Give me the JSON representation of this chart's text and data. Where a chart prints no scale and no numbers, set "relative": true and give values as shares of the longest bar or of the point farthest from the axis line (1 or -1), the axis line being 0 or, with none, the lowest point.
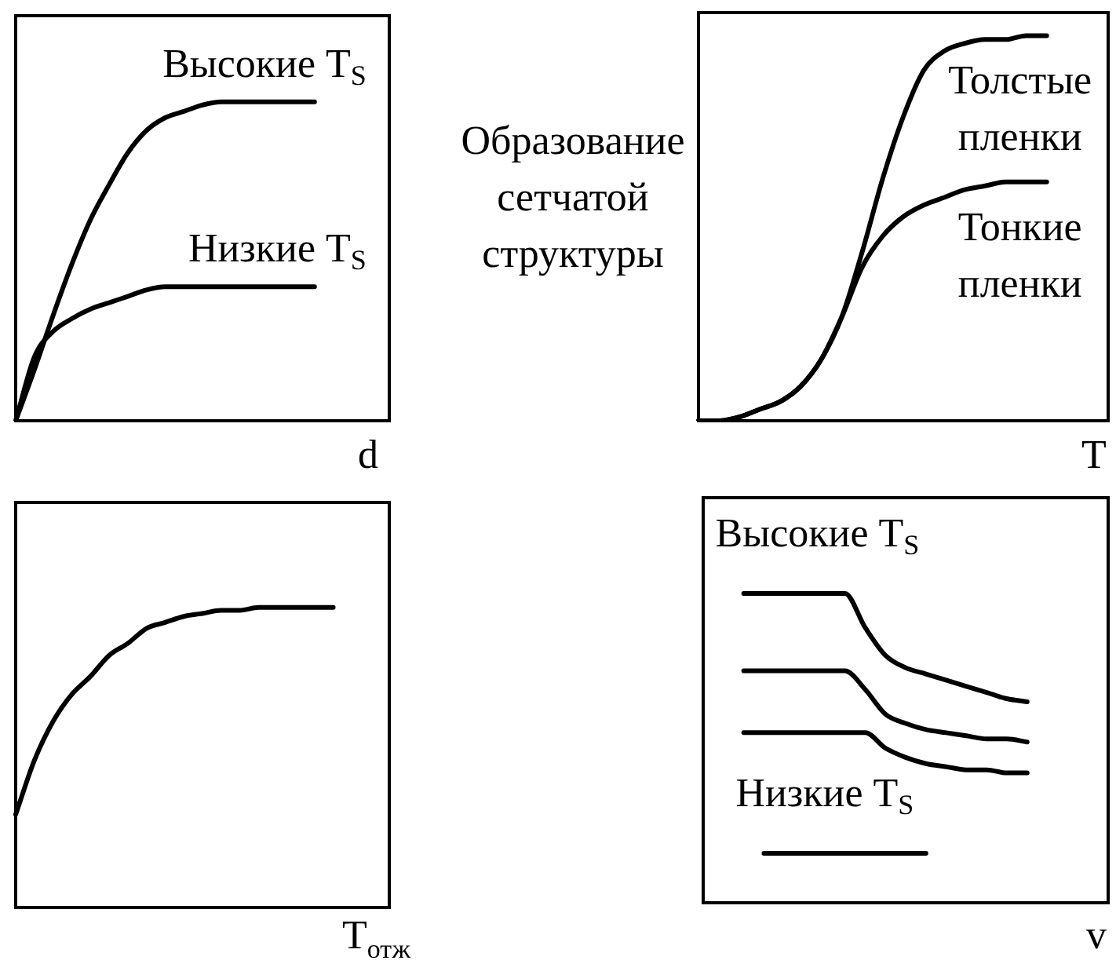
{
  "chart_data": [
    {
      "type": "line",
      "relative": true,
      "tick_labels": false,
      "marker": "none",
      "line_style": "solid",
      "legend": false,
      "xlabel": "d",
      "categories": [
        null,
        null,
        null,
        null,
        null,
        null,
        null,
        null,
        null,
        null,
        null,
        null,
        null,
        null,
        null,
        null,
        null,
        null,
        null,
        null,
        null
      ],
      "series": [
        {
          "name": "Высокие T$_{S}$",
          "color": "#000000",
          "values": [
            0,
            0.16,
            0.33,
            0.49,
            0.63,
            0.74,
            0.84,
            0.91,
            0.95,
            0.97,
            0.99,
            1,
            1,
            1,
            1,
            1,
            1,
            null,
            null,
            null,
            null
          ]
        },
        {
          "name": "Низкие T$_{S}$",
          "color": "#000000",
          "values": [
            0,
            0.2,
            0.28,
            0.32,
            0.35,
            0.37,
            0.39,
            0.41,
            0.42,
            0.42,
            0.42,
            0.42,
            0.42,
            0.42,
            0.42,
            0.42,
            0.42,
            null,
            null,
            null,
            null
          ]
        }
      ]
    },
    {
      "type": "line",
      "relative": true,
      "tick_labels": false,
      "marker": "none",
      "line_style": "solid",
      "legend": false,
      "xlabel": "T",
      "ylabel": "Образование сетчатой структуры",
      "categories": [
        null,
        null,
        null,
        null,
        null,
        null,
        null,
        null,
        null,
        null,
        null,
        null,
        null,
        null,
        null,
        null,
        null,
        null,
        null,
        null,
        null
      ],
      "series": [
        {
          "name": "Толстые пленки",
          "color": "#000000",
          "values": [
            0,
            0,
            0.01,
            0.03,
            0.05,
            0.09,
            0.16,
            0.27,
            0.44,
            0.63,
            0.79,
            0.91,
            0.96,
            0.98,
            0.99,
            0.99,
            1,
            1,
            null,
            null,
            null
          ]
        },
        {
          "name": "Тонкие пленки",
          "color": "#000000",
          "values": [
            0,
            0,
            0.01,
            0.03,
            0.05,
            0.09,
            0.16,
            0.27,
            0.4,
            0.48,
            0.53,
            0.56,
            0.58,
            0.6,
            0.61,
            0.62,
            0.62,
            0.62,
            null,
            null,
            null
          ]
        }
      ]
    },
    {
      "type": "line",
      "relative": true,
      "tick_labels": false,
      "marker": "none",
      "line_style": "solid",
      "legend": false,
      "xlabel": "T$_{отж}$",
      "categories": [
        null,
        null,
        null,
        null,
        null,
        null,
        null,
        null,
        null,
        null,
        null,
        null,
        null,
        null,
        null,
        null,
        null,
        null,
        null,
        null,
        null
      ],
      "series": [
        {
          "color": "#000000",
          "values": [
            0.31,
            0.49,
            0.62,
            0.71,
            0.77,
            0.84,
            0.88,
            0.93,
            0.95,
            0.97,
            0.98,
            0.99,
            0.99,
            1,
            1,
            1,
            1,
            1,
            null,
            null,
            null
          ]
        }
      ]
    },
    {
      "type": "line",
      "relative": true,
      "tick_labels": false,
      "marker": "none",
      "line_style": "solid",
      "legend": false,
      "xlabel": "v",
      "categories": [
        null,
        null,
        null,
        null,
        null,
        null,
        null,
        null,
        null,
        null,
        null,
        null,
        null,
        null,
        null,
        null,
        null,
        null,
        null,
        null,
        null
      ],
      "series": [
        {
          "name": "Высокие T$_{S}$",
          "color": "#000000",
          "values": [
            null,
            null,
            1,
            1,
            1,
            1,
            1,
            1,
            0.89,
            0.8,
            0.76,
            0.74,
            0.72,
            0.7,
            0.68,
            0.66,
            0.65,
            null,
            null,
            null,
            null
          ]
        },
        {
          "color": "#000000",
          "values": [
            null,
            null,
            0.75,
            0.75,
            0.75,
            0.75,
            0.75,
            0.75,
            0.69,
            0.61,
            0.58,
            0.56,
            0.55,
            0.54,
            0.53,
            0.53,
            0.52,
            null,
            null,
            null,
            null
          ]
        },
        {
          "color": "#000000",
          "values": [
            null,
            null,
            0.55,
            0.55,
            0.55,
            0.55,
            0.55,
            0.55,
            0.55,
            0.5,
            0.47,
            0.45,
            0.44,
            0.43,
            0.43,
            0.42,
            0.42,
            null,
            null,
            null,
            null
          ]
        },
        {
          "name": "Низкие T$_{S}$",
          "color": "#000000",
          "values": [
            null,
            null,
            null,
            0.16,
            0.16,
            0.16,
            0.16,
            0.16,
            0.16,
            0.16,
            0.16,
            0.16,
            null,
            null,
            null,
            null,
            null,
            null,
            null,
            null,
            null
          ]
        }
      ]
    }
  ]
}
